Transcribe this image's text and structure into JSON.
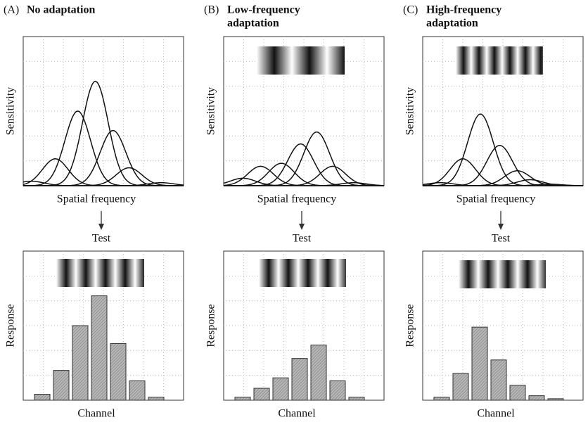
{
  "panels": [
    {
      "letter": "(A)",
      "title": [
        "No adaptation"
      ],
      "arrow_label": "Test"
    },
    {
      "letter": "(B)",
      "title": [
        "Low-frequency",
        "adaptation"
      ],
      "arrow_label": "Test"
    },
    {
      "letter": "(C)",
      "title": [
        "High-frequency",
        "adaptation"
      ],
      "arrow_label": "Test"
    }
  ],
  "chart_data": [
    {
      "type": "tuning-curves",
      "xlabel": "Spatial frequency",
      "ylabel": "Sensitivity",
      "xlim": [
        0,
        100
      ],
      "ylim": [
        0,
        100
      ],
      "width": 8,
      "grid": true,
      "series": [
        {
          "center": 5,
          "peak": 3
        },
        {
          "center": 20,
          "peak": 18
        },
        {
          "center": 34,
          "peak": 50
        },
        {
          "center": 45,
          "peak": 70
        },
        {
          "center": 56,
          "peak": 37
        },
        {
          "center": 66,
          "peak": 12
        },
        {
          "center": 86,
          "peak": 2
        }
      ]
    },
    {
      "type": "tuning-curves",
      "xlabel": "Spatial frequency",
      "ylabel": "Sensitivity",
      "xlim": [
        0,
        100
      ],
      "ylim": [
        0,
        100
      ],
      "width": 8,
      "grid": true,
      "series": [
        {
          "center": 12,
          "peak": 5
        },
        {
          "center": 23,
          "peak": 13
        },
        {
          "center": 36,
          "peak": 15
        },
        {
          "center": 48,
          "peak": 28
        },
        {
          "center": 58,
          "peak": 36
        },
        {
          "center": 68,
          "peak": 13
        },
        {
          "center": 81,
          "peak": 2
        }
      ]
    },
    {
      "type": "tuning-curves",
      "xlabel": "Spatial frequency",
      "ylabel": "Sensitivity",
      "xlim": [
        0,
        100
      ],
      "ylim": [
        0,
        100
      ],
      "width": 8,
      "grid": true,
      "series": [
        {
          "center": 11,
          "peak": 2
        },
        {
          "center": 25,
          "peak": 18
        },
        {
          "center": 36,
          "peak": 48
        },
        {
          "center": 48,
          "peak": 27
        },
        {
          "center": 59,
          "peak": 10
        },
        {
          "center": 67,
          "peak": 4
        },
        {
          "center": 79,
          "peak": 1
        }
      ]
    },
    {
      "type": "bar",
      "xlabel": "Channel",
      "ylabel": "Response",
      "ylim": [
        0,
        100
      ],
      "grid": true,
      "color": "#a9a9a9",
      "values": [
        4,
        20,
        50,
        70,
        38,
        13,
        2
      ]
    },
    {
      "type": "bar",
      "xlabel": "Channel",
      "ylabel": "Response",
      "ylim": [
        0,
        100
      ],
      "grid": true,
      "color": "#a9a9a9",
      "values": [
        2,
        8,
        15,
        28,
        37,
        13,
        2
      ]
    },
    {
      "type": "bar",
      "xlabel": "Channel",
      "ylabel": "Response",
      "ylim": [
        0,
        100
      ],
      "grid": true,
      "color": "#a9a9a9",
      "values": [
        2,
        18,
        49,
        27,
        10,
        3,
        1
      ]
    }
  ]
}
